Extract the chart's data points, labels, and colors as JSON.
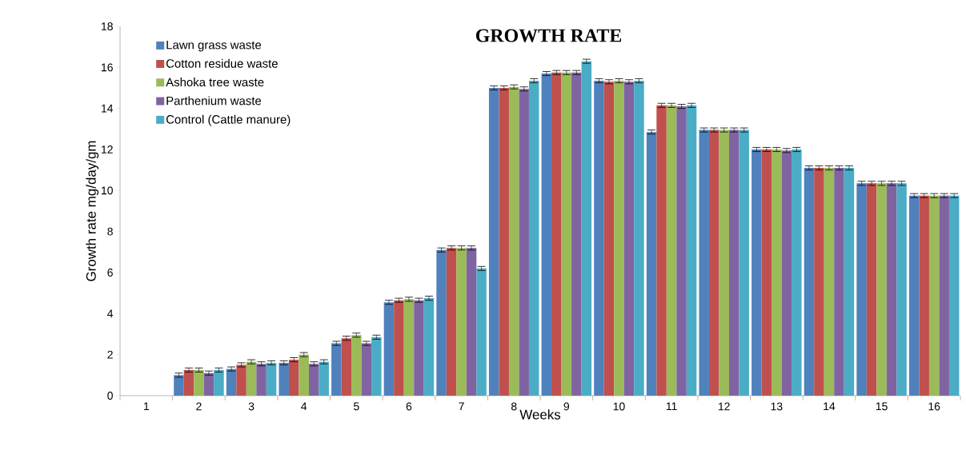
{
  "chart_data": {
    "type": "bar",
    "title": "GROWTH RATE",
    "xlabel": "Weeks",
    "ylabel": "Growth rate mg/day/gm",
    "categories": [
      "1",
      "2",
      "3",
      "4",
      "5",
      "6",
      "7",
      "8",
      "9",
      "10",
      "11",
      "12",
      "13",
      "14",
      "15",
      "16"
    ],
    "series": [
      {
        "name": "Lawn grass waste",
        "color": "#4f81bd",
        "values": [
          0,
          1.0,
          1.3,
          1.6,
          2.55,
          4.55,
          7.1,
          15.0,
          15.7,
          15.35,
          12.85,
          12.95,
          12.0,
          11.1,
          10.35,
          9.75
        ],
        "errors": [
          null,
          0.1,
          0.1,
          0.1,
          0.1,
          0.1,
          0.1,
          0.1,
          0.1,
          0.1,
          0.1,
          0.1,
          0.1,
          0.1,
          0.1,
          0.1
        ]
      },
      {
        "name": "Cotton residue waste",
        "color": "#c0504d",
        "values": [
          0,
          1.25,
          1.5,
          1.75,
          2.8,
          4.65,
          7.2,
          15.0,
          15.75,
          15.3,
          14.15,
          12.95,
          12.0,
          11.1,
          10.35,
          9.75
        ],
        "errors": [
          null,
          0.1,
          0.1,
          0.1,
          0.1,
          0.1,
          0.1,
          0.1,
          0.1,
          0.1,
          0.1,
          0.1,
          0.1,
          0.1,
          0.1,
          0.1
        ]
      },
      {
        "name": "Ashoka tree waste",
        "color": "#9bbb59",
        "values": [
          0,
          1.25,
          1.65,
          2.0,
          2.95,
          4.7,
          7.2,
          15.05,
          15.75,
          15.35,
          14.15,
          12.95,
          12.0,
          11.1,
          10.35,
          9.75
        ],
        "errors": [
          null,
          0.1,
          0.1,
          0.1,
          0.1,
          0.1,
          0.1,
          0.1,
          0.1,
          0.1,
          0.1,
          0.1,
          0.1,
          0.1,
          0.1,
          0.1
        ]
      },
      {
        "name": "Parthenium waste",
        "color": "#8064a2",
        "values": [
          0,
          1.1,
          1.55,
          1.55,
          2.55,
          4.65,
          7.2,
          14.95,
          15.75,
          15.3,
          14.1,
          12.95,
          11.95,
          11.1,
          10.35,
          9.75
        ],
        "errors": [
          null,
          0.1,
          0.1,
          0.1,
          0.1,
          0.1,
          0.1,
          0.1,
          0.1,
          0.1,
          0.1,
          0.1,
          0.1,
          0.1,
          0.1,
          0.1
        ]
      },
      {
        "name": "Control (Cattle manure)",
        "color": "#4bacc6",
        "values": [
          0,
          1.25,
          1.6,
          1.65,
          2.85,
          4.75,
          6.2,
          15.35,
          16.3,
          15.35,
          14.15,
          12.95,
          12.0,
          11.1,
          10.35,
          9.75
        ],
        "errors": [
          null,
          0.1,
          0.1,
          0.1,
          0.1,
          0.1,
          0.1,
          0.1,
          0.1,
          0.1,
          0.1,
          0.1,
          0.1,
          0.1,
          0.1,
          0.1
        ]
      }
    ],
    "ylim": [
      0,
      18
    ],
    "yticks": [
      0,
      2,
      4,
      6,
      8,
      10,
      12,
      14,
      16,
      18
    ],
    "grid": false,
    "legend": "top left"
  }
}
